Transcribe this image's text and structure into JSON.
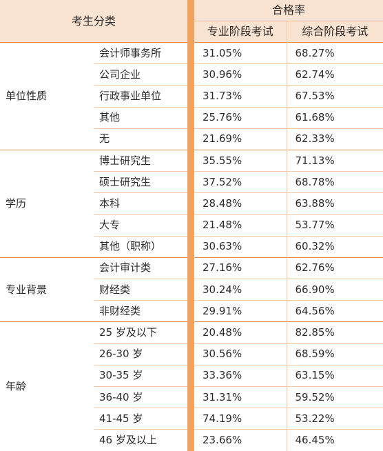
{
  "header": {
    "category_label": "考生分类",
    "pass_rate_label": "合格率",
    "col_professional": "专业阶段考试",
    "col_comprehensive": "综合阶段考试"
  },
  "groups": [
    {
      "label": "单位性质",
      "rows": [
        {
          "name": "会计师事务所",
          "prof": "31.05%",
          "comp": "68.27%"
        },
        {
          "name": "公司企业",
          "prof": "30.96%",
          "comp": "62.74%"
        },
        {
          "name": "行政事业单位",
          "prof": "31.73%",
          "comp": "67.53%"
        },
        {
          "name": "其他",
          "prof": "25.76%",
          "comp": "61.68%"
        },
        {
          "name": "无",
          "prof": "21.69%",
          "comp": "62.33%"
        }
      ]
    },
    {
      "label": "学历",
      "rows": [
        {
          "name": "博士研究生",
          "prof": "35.55%",
          "comp": "71.13%"
        },
        {
          "name": "硕士研究生",
          "prof": "37.52%",
          "comp": "68.78%"
        },
        {
          "name": "本科",
          "prof": "28.48%",
          "comp": "63.88%"
        },
        {
          "name": "大专",
          "prof": "21.48%",
          "comp": "53.77%"
        },
        {
          "name": "其他（职称）",
          "prof": "30.63%",
          "comp": "60.32%"
        }
      ]
    },
    {
      "label": "专业背景",
      "rows": [
        {
          "name": "会计审计类",
          "prof": "27.16%",
          "comp": "62.76%"
        },
        {
          "name": "财经类",
          "prof": "30.24%",
          "comp": "66.90%"
        },
        {
          "name": "非财经类",
          "prof": "29.91%",
          "comp": "64.56%"
        }
      ]
    },
    {
      "label": "年龄",
      "rows": [
        {
          "name": "25 岁及以下",
          "prof": "20.48%",
          "comp": "82.85%"
        },
        {
          "name": "26-30 岁",
          "prof": "30.56%",
          "comp": "68.59%"
        },
        {
          "name": "30-35 岁",
          "prof": "33.36%",
          "comp": "63.15%"
        },
        {
          "name": "36-40 岁",
          "prof": "31.31%",
          "comp": "59.52%"
        },
        {
          "name": "41-45 岁",
          "prof": "74.19%",
          "comp": "53.22%"
        },
        {
          "name": "46 岁及以上",
          "prof": "23.66%",
          "comp": "46.45%"
        }
      ]
    }
  ],
  "colors": {
    "header_bg": "#fbe3d2",
    "divider": "#f0a25e",
    "group_line": "#e48a45",
    "row_line": "#f6c8a5"
  }
}
